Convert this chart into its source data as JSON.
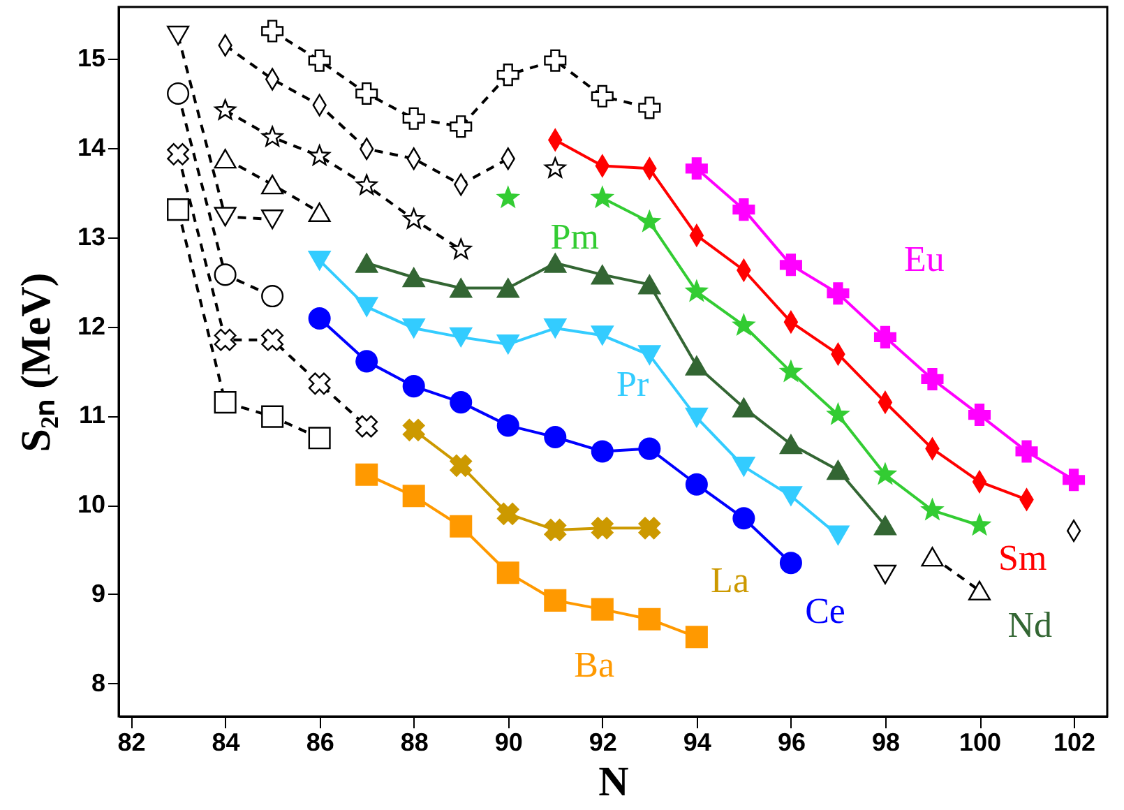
{
  "chart_data": {
    "type": "line",
    "xlabel": "N",
    "ylabel": "S₂ₙ (MeV)",
    "xlim": [
      81.74,
      102.71
    ],
    "ylim": [
      7.63,
      15.58
    ],
    "xticks": [
      82,
      84,
      86,
      88,
      90,
      92,
      94,
      96,
      98,
      100,
      102
    ],
    "yticks": [
      8,
      9,
      10,
      11,
      12,
      13,
      14,
      15
    ],
    "series": [
      {
        "color": "#000000",
        "marker": "square",
        "line_style": "dashed",
        "x": [
          83,
          84,
          85,
          86
        ],
        "values": [
          13.31,
          11.15,
          10.99,
          10.75
        ]
      },
      {
        "color": "#000000",
        "marker": "x",
        "line_style": "dashed",
        "x": [
          83,
          84,
          85,
          86,
          87
        ],
        "values": [
          13.93,
          11.85,
          11.85,
          11.36,
          10.88
        ]
      },
      {
        "color": "#000000",
        "marker": "circle",
        "line_style": "dashed",
        "x": [
          83,
          84,
          85
        ],
        "values": [
          14.61,
          12.58,
          12.34
        ]
      },
      {
        "color": "#000000",
        "marker": "triangle-down",
        "line_style": "dashed",
        "x": [
          83,
          84,
          85
        ],
        "values": [
          15.26,
          13.23,
          13.2
        ]
      },
      {
        "color": "#000000",
        "marker": "triangle-down",
        "line_style": "dashed",
        "x": [
          98
        ],
        "values": [
          9.22
        ]
      },
      {
        "color": "#000000",
        "marker": "triangle",
        "line_style": "dashed",
        "x": [
          84,
          85,
          86
        ],
        "values": [
          13.88,
          13.59,
          13.28
        ]
      },
      {
        "color": "#000000",
        "marker": "triangle",
        "line_style": "dashed",
        "x": [
          99,
          100
        ],
        "values": [
          9.42,
          9.04
        ]
      },
      {
        "color": "#000000",
        "marker": "star",
        "line_style": "dashed",
        "x": [
          84,
          85,
          86,
          87,
          88,
          89,
          90,
          91
        ],
        "values": [
          14.42,
          14.12,
          13.91,
          13.58,
          13.2,
          12.86,
          null,
          13.77
        ]
      },
      {
        "color": "#000000",
        "marker": "diamond",
        "line_style": "dashed",
        "x": [
          84,
          85,
          86,
          87,
          88,
          89,
          90
        ],
        "values": [
          15.15,
          14.77,
          14.48,
          13.99,
          13.88,
          13.59,
          13.88
        ]
      },
      {
        "color": "#000000",
        "marker": "diamond",
        "line_style": "dashed",
        "x": [
          102
        ],
        "values": [
          9.71
        ]
      },
      {
        "color": "#000000",
        "marker": "cross",
        "line_style": "dashed",
        "x": [
          85,
          86,
          87,
          88,
          89,
          90,
          91,
          92,
          93
        ],
        "values": [
          15.31,
          14.98,
          14.61,
          14.33,
          14.24,
          14.82,
          14.98,
          14.58,
          14.45
        ]
      },
      {
        "name": "Ba",
        "color": "#ff9900",
        "marker": "square",
        "line_style": "solid",
        "x": [
          87,
          88,
          89,
          90,
          91,
          92,
          93,
          94
        ],
        "values": [
          10.34,
          10.1,
          9.76,
          9.24,
          8.93,
          8.83,
          8.72,
          8.52
        ]
      },
      {
        "name": "La",
        "color": "#cc9900",
        "marker": "x",
        "line_style": "solid",
        "x": [
          88,
          89,
          90,
          91,
          92,
          93
        ],
        "values": [
          10.84,
          10.44,
          9.9,
          9.72,
          9.74,
          9.74
        ]
      },
      {
        "name": "Ce",
        "color": "#0000ff",
        "marker": "circle",
        "line_style": "solid",
        "x": [
          86,
          87,
          88,
          89,
          90,
          91,
          92,
          93,
          94,
          95,
          96
        ],
        "values": [
          12.09,
          11.61,
          11.33,
          11.15,
          10.89,
          10.76,
          10.6,
          10.63,
          10.23,
          9.85,
          9.35
        ]
      },
      {
        "name": "Pr",
        "color": "#33ccff",
        "marker": "triangle-down",
        "line_style": "solid",
        "x": [
          86,
          87,
          88,
          89,
          90,
          91,
          92,
          93,
          94,
          95,
          96,
          97
        ],
        "values": [
          12.74,
          12.22,
          11.98,
          11.88,
          11.8,
          11.98,
          11.9,
          11.68,
          10.98,
          10.43,
          10.1,
          9.66
        ]
      },
      {
        "name": "Nd",
        "color": "#336633",
        "marker": "triangle",
        "line_style": "solid",
        "x": [
          87,
          88,
          89,
          90,
          91,
          92,
          93,
          94,
          95,
          96,
          97,
          98
        ],
        "values": [
          12.71,
          12.55,
          12.43,
          12.43,
          12.71,
          12.58,
          12.47,
          11.56,
          11.09,
          10.68,
          10.39,
          9.77
        ]
      },
      {
        "name": "Pm",
        "color": "#33cc33",
        "marker": "star",
        "line_style": "solid",
        "x": [
          90,
          91,
          92,
          93,
          94,
          95,
          96,
          97,
          98,
          99,
          100
        ],
        "values": [
          13.44,
          null,
          13.44,
          13.17,
          12.39,
          12.01,
          11.49,
          11.01,
          10.34,
          9.94,
          9.77
        ]
      },
      {
        "name": "Sm",
        "color": "#ff0000",
        "marker": "diamond",
        "line_style": "solid",
        "x": [
          91,
          92,
          93,
          94,
          95,
          96,
          97,
          98,
          99,
          100,
          101
        ],
        "values": [
          14.09,
          13.8,
          13.77,
          13.02,
          12.63,
          12.05,
          11.69,
          11.15,
          10.63,
          10.26,
          10.06
        ]
      },
      {
        "name": "Eu",
        "color": "#ff00ff",
        "marker": "cross",
        "line_style": "solid",
        "x": [
          94,
          95,
          96,
          97,
          98,
          99,
          100,
          101,
          102
        ],
        "values": [
          13.77,
          13.31,
          12.69,
          12.37,
          11.88,
          11.41,
          11.01,
          10.6,
          10.28
        ]
      }
    ]
  }
}
